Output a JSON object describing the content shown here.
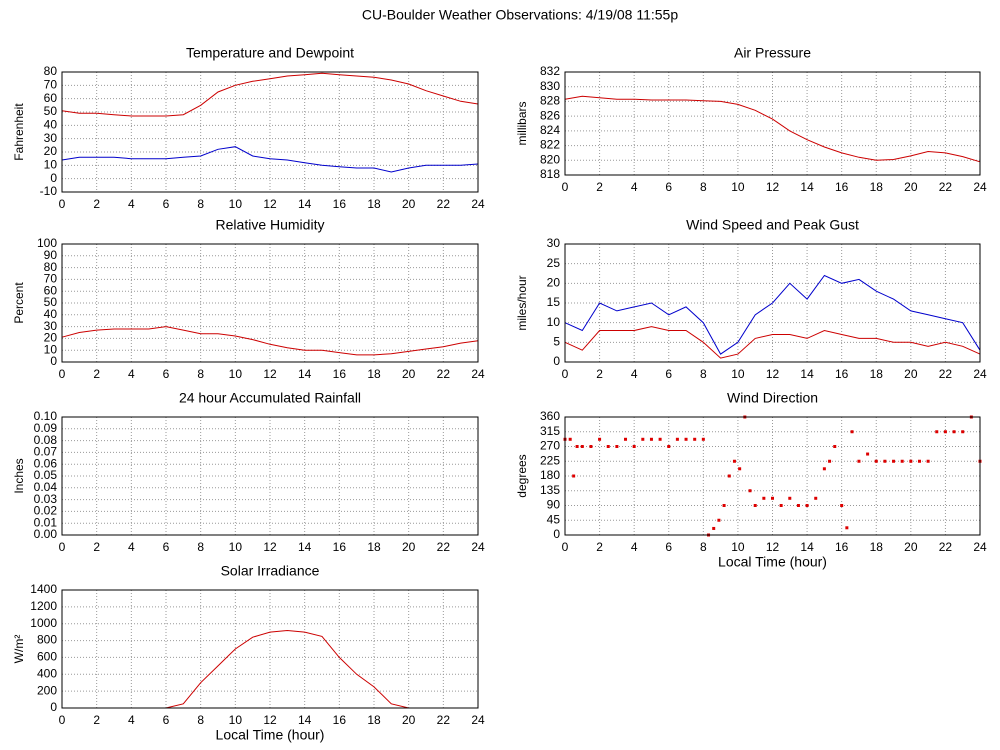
{
  "title": "CU-Boulder Weather Observations: 4/19/08 11:55p",
  "chart_data": [
    {
      "type": "line",
      "title": "Temperature and Dewpoint",
      "ylabel": "Fahrenheit",
      "x": [
        0,
        1,
        2,
        3,
        4,
        5,
        6,
        7,
        8,
        9,
        10,
        11,
        12,
        13,
        14,
        15,
        16,
        17,
        18,
        19,
        20,
        21,
        22,
        23,
        24
      ],
      "series": [
        {
          "color": "#cc0000",
          "values": [
            51,
            49,
            49,
            48,
            47,
            47,
            47,
            48,
            55,
            65,
            70,
            73,
            75,
            77,
            78,
            79,
            78,
            77,
            76,
            74,
            71,
            66,
            62,
            58,
            56
          ]
        },
        {
          "color": "#0000cc",
          "values": [
            14,
            16,
            16,
            16,
            15,
            15,
            15,
            16,
            17,
            22,
            24,
            17,
            15,
            14,
            12,
            10,
            9,
            8,
            8,
            5,
            8,
            10,
            10,
            10,
            11
          ]
        }
      ],
      "xlim": [
        0,
        24
      ],
      "xticks": [
        0,
        2,
        4,
        6,
        8,
        10,
        12,
        14,
        16,
        18,
        20,
        22,
        24
      ],
      "ylim": [
        -10,
        80
      ],
      "yticks": [
        -10,
        0,
        10,
        20,
        30,
        40,
        50,
        60,
        70,
        80
      ],
      "grid": true
    },
    {
      "type": "line",
      "title": "Air Pressure",
      "ylabel": "millibars",
      "x": [
        0,
        1,
        2,
        3,
        4,
        5,
        6,
        7,
        8,
        9,
        10,
        11,
        12,
        13,
        14,
        15,
        16,
        17,
        18,
        19,
        20,
        21,
        22,
        23,
        24
      ],
      "series": [
        {
          "color": "#cc0000",
          "values": [
            828.3,
            828.7,
            828.5,
            828.3,
            828.3,
            828.2,
            828.2,
            828.2,
            828.1,
            828.0,
            827.6,
            826.8,
            825.6,
            824.0,
            822.8,
            821.8,
            821.0,
            820.4,
            820.0,
            820.1,
            820.6,
            821.2,
            821.0,
            820.5,
            819.8
          ]
        }
      ],
      "xlim": [
        0,
        24
      ],
      "xticks": [
        0,
        2,
        4,
        6,
        8,
        10,
        12,
        14,
        16,
        18,
        20,
        22,
        24
      ],
      "ylim": [
        818,
        832
      ],
      "yticks": [
        818,
        820,
        822,
        824,
        826,
        828,
        830,
        832
      ],
      "grid": true
    },
    {
      "type": "line",
      "title": "Relative Humidity",
      "ylabel": "Percent",
      "x": [
        0,
        1,
        2,
        3,
        4,
        5,
        6,
        7,
        8,
        9,
        10,
        11,
        12,
        13,
        14,
        15,
        16,
        17,
        18,
        19,
        20,
        21,
        22,
        23,
        24
      ],
      "series": [
        {
          "color": "#cc0000",
          "values": [
            21,
            25,
            27,
            28,
            28,
            28,
            30,
            27,
            24,
            24,
            22,
            19,
            15,
            12,
            10,
            10,
            8,
            6,
            6,
            7,
            9,
            11,
            13,
            16,
            18
          ]
        }
      ],
      "xlim": [
        0,
        24
      ],
      "xticks": [
        0,
        2,
        4,
        6,
        8,
        10,
        12,
        14,
        16,
        18,
        20,
        22,
        24
      ],
      "ylim": [
        0,
        100
      ],
      "yticks": [
        0,
        10,
        20,
        30,
        40,
        50,
        60,
        70,
        80,
        90,
        100
      ],
      "grid": true
    },
    {
      "type": "line",
      "title": "Wind Speed and Peak Gust",
      "ylabel": "miles/hour",
      "x": [
        0,
        1,
        2,
        3,
        4,
        5,
        6,
        7,
        8,
        9,
        10,
        11,
        12,
        13,
        14,
        15,
        16,
        17,
        18,
        19,
        20,
        21,
        22,
        23,
        24
      ],
      "series": [
        {
          "color": "#0000cc",
          "values": [
            10,
            8,
            15,
            13,
            14,
            15,
            12,
            14,
            10,
            2,
            5,
            12,
            15,
            20,
            16,
            22,
            20,
            21,
            18,
            16,
            13,
            12,
            11,
            10,
            3
          ]
        },
        {
          "color": "#cc0000",
          "values": [
            5,
            3,
            8,
            8,
            8,
            9,
            8,
            8,
            5,
            1,
            2,
            6,
            7,
            7,
            6,
            8,
            7,
            6,
            6,
            5,
            5,
            4,
            5,
            4,
            2
          ]
        }
      ],
      "xlim": [
        0,
        24
      ],
      "xticks": [
        0,
        2,
        4,
        6,
        8,
        10,
        12,
        14,
        16,
        18,
        20,
        22,
        24
      ],
      "ylim": [
        0,
        30
      ],
      "yticks": [
        0,
        5,
        10,
        15,
        20,
        25,
        30
      ],
      "grid": true
    },
    {
      "type": "line",
      "title": "24 hour Accumulated Rainfall",
      "ylabel": "Inches",
      "x": [
        0,
        24
      ],
      "series": [
        {
          "color": "#cc0000",
          "values": [
            0,
            0
          ]
        }
      ],
      "xlim": [
        0,
        24
      ],
      "xticks": [
        0,
        2,
        4,
        6,
        8,
        10,
        12,
        14,
        16,
        18,
        20,
        22,
        24
      ],
      "ylim": [
        0,
        0.1
      ],
      "yticks": [
        {
          "value": 0,
          "label": "0.00"
        },
        {
          "value": 0.01,
          "label": "0.01"
        },
        {
          "value": 0.02,
          "label": "0.02"
        },
        {
          "value": 0.03,
          "label": "0.03"
        },
        {
          "value": 0.04,
          "label": "0.04"
        },
        {
          "value": 0.05,
          "label": "0.05"
        },
        {
          "value": 0.06,
          "label": "0.06"
        },
        {
          "value": 0.07,
          "label": "0.07"
        },
        {
          "value": 0.08,
          "label": "0.08"
        },
        {
          "value": 0.09,
          "label": "0.09"
        },
        {
          "value": 0.1,
          "label": "0.10"
        }
      ],
      "grid": true
    },
    {
      "type": "scatter",
      "title": "Wind Direction",
      "ylabel": "degrees",
      "xlabel": "Local Time (hour)",
      "x": [
        0,
        0.3,
        0.5,
        0.7,
        1,
        1.5,
        2,
        2.5,
        3,
        3.5,
        4,
        4.5,
        5,
        5.5,
        6,
        6.5,
        7,
        7.5,
        8,
        8.3,
        8.6,
        8.9,
        9.2,
        9.5,
        9.8,
        10.1,
        10.4,
        10.7,
        11,
        11.5,
        12,
        12.5,
        13,
        13.5,
        14,
        14.5,
        15,
        15.3,
        15.6,
        16,
        16.3,
        16.6,
        17,
        17.5,
        18,
        18.5,
        19,
        19.5,
        20,
        20.5,
        21,
        21.5,
        22,
        22.5,
        23,
        23.5,
        24
      ],
      "series": [
        {
          "color": "#dd0000",
          "values": [
            292,
            292,
            180,
            270,
            270,
            270,
            292,
            270,
            270,
            292,
            270,
            292,
            292,
            292,
            270,
            292,
            292,
            292,
            292,
            0,
            20,
            45,
            90,
            180,
            225,
            202,
            360,
            135,
            90,
            112,
            112,
            90,
            112,
            90,
            90,
            112,
            202,
            225,
            270,
            90,
            22,
            315,
            225,
            247,
            225,
            225,
            225,
            225,
            225,
            225,
            225,
            315,
            315,
            315,
            315,
            360,
            225
          ]
        }
      ],
      "xlim": [
        0,
        24
      ],
      "xticks": [
        0,
        2,
        4,
        6,
        8,
        10,
        12,
        14,
        16,
        18,
        20,
        22,
        24
      ],
      "ylim": [
        0,
        360
      ],
      "yticks": [
        0,
        45,
        90,
        135,
        180,
        225,
        270,
        315,
        360
      ],
      "grid": true
    },
    {
      "type": "line",
      "title": "Solar Irradiance",
      "ylabel": "W/m²",
      "xlabel": "Local Time (hour)",
      "x": [
        0,
        1,
        2,
        3,
        4,
        5,
        6,
        7,
        8,
        9,
        10,
        11,
        12,
        13,
        14,
        15,
        16,
        17,
        18,
        19,
        20,
        21,
        22,
        23,
        24
      ],
      "series": [
        {
          "color": "#cc0000",
          "values": [
            0,
            0,
            0,
            0,
            0,
            0,
            0,
            50,
            300,
            500,
            700,
            840,
            900,
            920,
            900,
            850,
            600,
            400,
            250,
            50,
            0,
            0,
            0,
            0,
            0
          ]
        }
      ],
      "xlim": [
        0,
        24
      ],
      "xticks": [
        0,
        2,
        4,
        6,
        8,
        10,
        12,
        14,
        16,
        18,
        20,
        22,
        24
      ],
      "ylim": [
        0,
        1400
      ],
      "yticks": [
        0,
        200,
        400,
        600,
        800,
        1000,
        1200,
        1400
      ],
      "grid": true
    }
  ]
}
